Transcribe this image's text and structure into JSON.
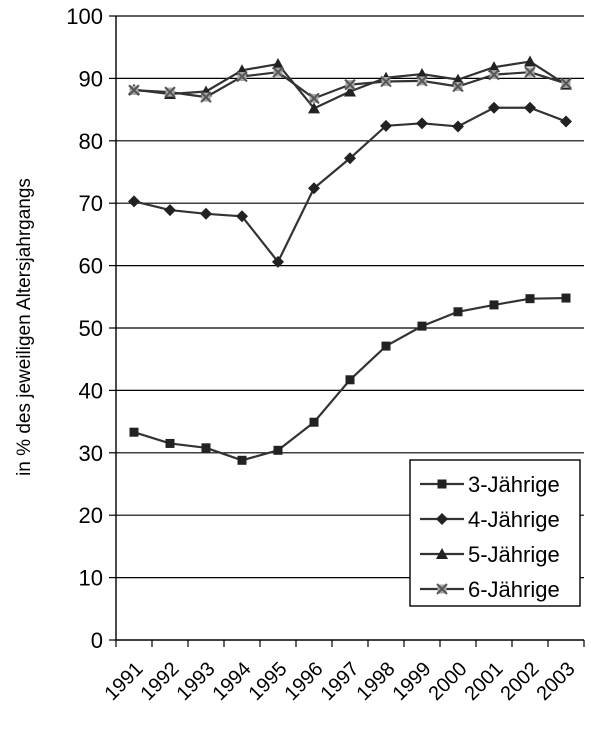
{
  "chart_data": {
    "type": "line",
    "title": "",
    "xlabel": "",
    "ylabel": "in % des jeweiligen Altersjahrgangs",
    "ylim": [
      0,
      100
    ],
    "yticks": [
      0,
      10,
      20,
      30,
      40,
      50,
      60,
      70,
      80,
      90,
      100
    ],
    "grid": true,
    "legend_position": "bottom-right",
    "categories": [
      "1991",
      "1992",
      "1993",
      "1994",
      "1995",
      "1996",
      "1997",
      "1998",
      "1999",
      "2000",
      "2001",
      "2002",
      "2003"
    ],
    "series": [
      {
        "name": "3-Jährige",
        "marker": "square",
        "values": [
          33.3,
          31.5,
          30.8,
          28.8,
          30.4,
          34.9,
          41.7,
          47.1,
          50.3,
          52.6,
          53.7,
          54.7,
          54.8
        ]
      },
      {
        "name": "4-Jährige",
        "marker": "diamond",
        "values": [
          70.3,
          68.9,
          68.3,
          67.9,
          60.6,
          72.4,
          77.2,
          82.4,
          82.8,
          82.3,
          85.3,
          85.3,
          83.1
        ]
      },
      {
        "name": "5-Jährige",
        "marker": "triangle",
        "values": [
          88.2,
          87.5,
          87.9,
          91.3,
          92.3,
          85.2,
          87.9,
          90.1,
          90.7,
          89.8,
          91.8,
          92.7,
          89.0
        ]
      },
      {
        "name": "6-Jährige",
        "marker": "x",
        "values": [
          88.1,
          87.8,
          87.0,
          90.3,
          91.0,
          86.8,
          89.0,
          89.5,
          89.6,
          88.7,
          90.6,
          91.0,
          89.2
        ]
      }
    ],
    "colors": {
      "line": "#333333",
      "marker": "#222222",
      "x_marker_fill": "#a6a6a6",
      "grid": "#000000"
    }
  }
}
